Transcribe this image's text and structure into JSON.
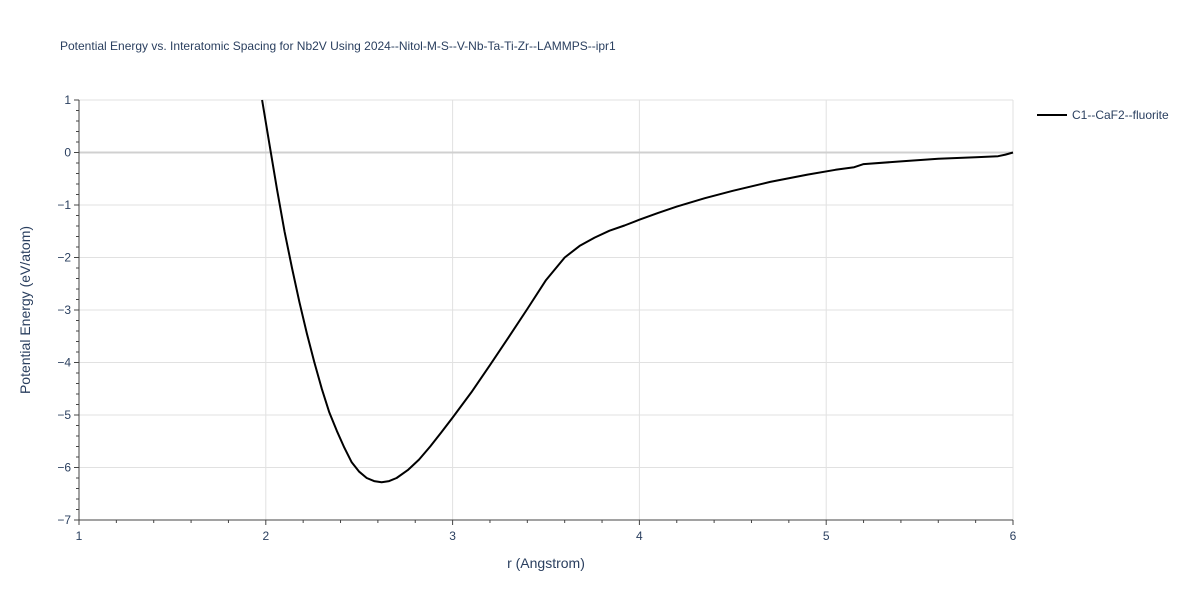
{
  "chart_data": {
    "type": "line",
    "title": "Potential Energy vs. Interatomic Spacing for Nb2V Using 2024--Nitol-M-S--V-Nb-Ta-Ti-Zr--LAMMPS--ipr1",
    "xlabel": "r (Angstrom)",
    "ylabel": "Potential Energy (eV/atom)",
    "xlim": [
      1,
      6
    ],
    "ylim": [
      -7,
      1
    ],
    "xticks": [
      1,
      2,
      3,
      4,
      5,
      6
    ],
    "xtick_labels": [
      "1",
      "2",
      "3",
      "4",
      "5",
      "6"
    ],
    "yticks": [
      1,
      0,
      -1,
      -2,
      -3,
      -4,
      -5,
      -6,
      -7
    ],
    "ytick_labels": [
      "1",
      "0",
      "−1",
      "−2",
      "−3",
      "−4",
      "−5",
      "−6",
      "−7"
    ],
    "grid": true,
    "legend_position": "top-right",
    "series": [
      {
        "name": "C1--CaF2--fluorite",
        "color": "#000000",
        "x": [
          1.98,
          2.02,
          2.06,
          2.1,
          2.14,
          2.18,
          2.22,
          2.26,
          2.3,
          2.34,
          2.38,
          2.42,
          2.46,
          2.5,
          2.54,
          2.58,
          2.62,
          2.66,
          2.7,
          2.76,
          2.82,
          2.88,
          2.94,
          3.0,
          3.1,
          3.2,
          3.3,
          3.4,
          3.5,
          3.6,
          3.68,
          3.76,
          3.84,
          3.92,
          4.0,
          4.1,
          4.2,
          4.35,
          4.5,
          4.7,
          4.9,
          5.05,
          5.15,
          5.2,
          5.4,
          5.6,
          5.8,
          5.92,
          5.96,
          6.0
        ],
        "y": [
          1.0,
          0.15,
          -0.7,
          -1.5,
          -2.2,
          -2.85,
          -3.45,
          -4.0,
          -4.5,
          -4.95,
          -5.3,
          -5.62,
          -5.9,
          -6.08,
          -6.2,
          -6.26,
          -6.28,
          -6.26,
          -6.2,
          -6.05,
          -5.85,
          -5.6,
          -5.33,
          -5.05,
          -4.57,
          -4.05,
          -3.52,
          -2.98,
          -2.43,
          -2.0,
          -1.78,
          -1.62,
          -1.49,
          -1.39,
          -1.28,
          -1.15,
          -1.03,
          -0.87,
          -0.73,
          -0.56,
          -0.42,
          -0.33,
          -0.28,
          -0.22,
          -0.17,
          -0.12,
          -0.09,
          -0.07,
          -0.04,
          0.0
        ]
      }
    ]
  }
}
